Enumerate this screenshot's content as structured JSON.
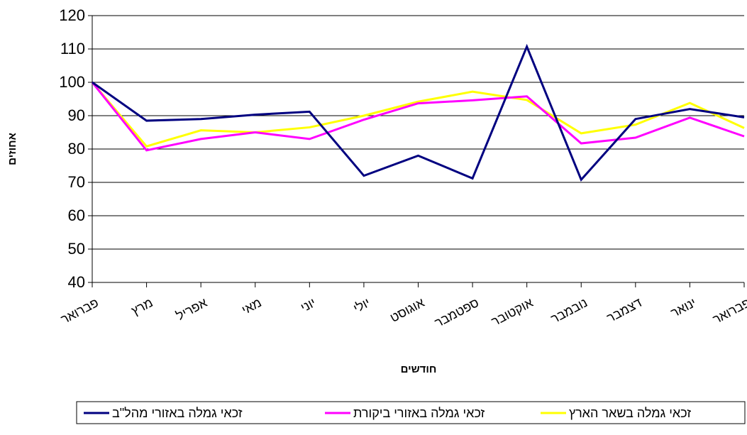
{
  "chart_data": {
    "type": "line",
    "x_label": "חודשים",
    "y_label": "אחוזים",
    "categories": [
      "פברואר",
      "מרץ",
      "אפריל",
      "מאי",
      "יוני",
      "יולי",
      "אוגוסט",
      "ספטמבר",
      "אוקטובר",
      "נובמבר",
      "דצמבר",
      "ינואר",
      "פברואר"
    ],
    "series": [
      {
        "name": "זכאי גמלה באזורי מהל\"ב",
        "color": "#000080",
        "values": [
          100,
          88.5,
          89,
          90.3,
          91.2,
          72,
          78,
          71.2,
          110.7,
          70.8,
          89,
          92,
          89.5
        ]
      },
      {
        "name": "זכאי גמלה באזורי ביקורת",
        "color": "#ff00ff",
        "values": [
          100,
          79.6,
          83,
          85,
          83,
          88.8,
          93.7,
          94.6,
          95.8,
          81.7,
          83.4,
          89.4,
          83.8
        ]
      },
      {
        "name": "זכאי גמלה בשאר הארץ",
        "color": "#ffff00",
        "values": [
          100,
          80.8,
          85.6,
          85,
          86.5,
          90,
          94.2,
          97.2,
          94.7,
          84.7,
          87.3,
          93.8,
          86.3
        ]
      }
    ],
    "ylim": [
      40,
      120
    ],
    "yticks": [
      40,
      50,
      60,
      70,
      80,
      90,
      100,
      110,
      120
    ],
    "grid": true
  }
}
